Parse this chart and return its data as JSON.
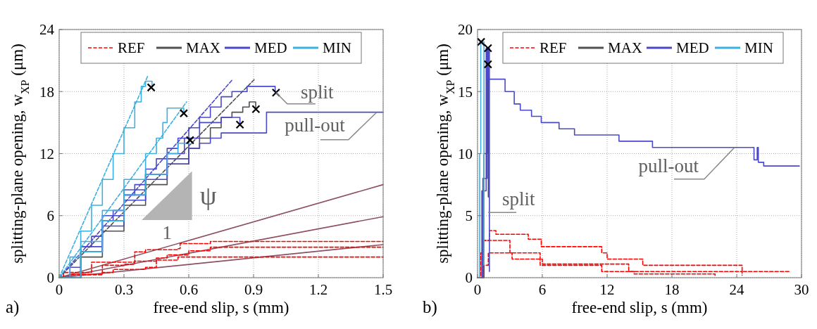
{
  "chart_data": [
    {
      "type": "step",
      "xlabel": "free-end slip, s (mm)",
      "ylabel": "splitting-plane opening, w$_{XP}$ (μm)",
      "xlim": [
        0,
        1.5
      ],
      "ylim": [
        0,
        24
      ],
      "xticks": [
        0,
        0.3,
        0.6,
        0.9,
        1.2,
        1.5
      ],
      "yticks": [
        0,
        6,
        12,
        18,
        24
      ],
      "grid": true,
      "legend": "top",
      "annotations": [
        "a)",
        {
          "text": "split",
          "x": 1.004,
          "y": 17.9
        },
        {
          "text": "pull-out",
          "x": 1.47,
          "y": 16
        },
        "ψ",
        "1"
      ],
      "series": [
        {
          "type": "line",
          "color": "#8c5060",
          "x": [
            0,
            1.5
          ],
          "values": [
            0,
            9
          ]
        },
        {
          "type": "line",
          "color": "#8c5060",
          "x": [
            0,
            1.5
          ],
          "values": [
            0,
            5.9
          ]
        },
        {
          "type": "line",
          "color": "#8c5060",
          "x": [
            0,
            1.5
          ],
          "values": [
            0,
            3.2
          ]
        },
        {
          "name": "REF",
          "color": "#ff0000",
          "line_style": "dashed",
          "x": [
            0,
            0.02,
            0.15,
            0.15,
            0.25,
            0.35,
            0.4,
            0.55,
            0.56,
            0.7,
            1.5
          ],
          "values": [
            0,
            0.5,
            0.7,
            1.5,
            1.5,
            2.5,
            2.7,
            2.8,
            3.3,
            3.5,
            3.5
          ]
        },
        {
          "color": "#ff0000",
          "line_style": "dashed",
          "x": [
            0,
            0.05,
            0.2,
            0.3,
            0.35,
            0.45,
            0.5,
            0.6,
            0.7,
            1.5
          ],
          "values": [
            0,
            0.3,
            1.2,
            1.3,
            1.6,
            1.9,
            2.2,
            2.6,
            2.95,
            2.95
          ]
        },
        {
          "color": "#ff0000",
          "line_style": "dashed",
          "x": [
            0,
            0.1,
            0.2,
            0.25,
            0.4,
            0.45,
            0.55,
            1.1,
            1.5
          ],
          "values": [
            0,
            0.3,
            0.5,
            0.8,
            1,
            1.7,
            2,
            2,
            2
          ]
        },
        {
          "name": "MAX",
          "color": "#505050",
          "x": [
            0,
            0.1,
            0.2,
            0.3,
            0.4,
            0.5,
            0.6,
            0.65,
            0.7,
            0.75,
            0.8,
            0.85,
            0.88,
            0.91,
            0.91
          ],
          "values": [
            0,
            2,
            4.5,
            7,
            9,
            11,
            12.5,
            13.5,
            14.5,
            15.5,
            16,
            16.5,
            17,
            17,
            16.3
          ]
        },
        {
          "type": "line",
          "color": "#505050",
          "line_style": "dashed",
          "x": [
            0,
            0.905
          ],
          "values": [
            0,
            19.2
          ]
        },
        {
          "name": "MED",
          "color": "#4a4ac8",
          "x": [
            0,
            0.05,
            0.1,
            0.15,
            0.2,
            0.25,
            0.3,
            0.35,
            0.4,
            0.45,
            0.5,
            0.55,
            0.6,
            0.65,
            0.7,
            0.75,
            0.8,
            0.87,
            1.0,
            1.0
          ],
          "values": [
            0,
            1,
            3,
            4,
            5.5,
            6.5,
            8,
            9,
            10.5,
            11.5,
            12.5,
            13.5,
            14.5,
            15.5,
            16.5,
            17.5,
            18,
            18.5,
            18.5,
            18
          ]
        },
        {
          "color": "#4a4ac8",
          "x": [
            0,
            0.1,
            0.2,
            0.3,
            0.4,
            0.5,
            0.6,
            0.65,
            0.7,
            0.75,
            0.94,
            0.96,
            1.5
          ],
          "values": [
            0,
            2.5,
            5,
            7.5,
            9.5,
            11,
            12.5,
            13,
            13.5,
            14,
            14,
            16,
            16
          ]
        },
        {
          "color": "#4a4ac8",
          "x": [
            0,
            0.1,
            0.2,
            0.3,
            0.4,
            0.5,
            0.6,
            0.65,
            0.75,
            0.8,
            0.837
          ],
          "values": [
            0,
            2.5,
            5.5,
            8,
            10,
            11.5,
            13.5,
            15,
            15.5,
            15.5,
            14.8
          ]
        },
        {
          "color": "#4a4ac8",
          "x": [
            0,
            0.1,
            0.2,
            0.3,
            0.4,
            0.5,
            0.58,
            0.606
          ],
          "values": [
            0,
            3,
            6,
            8.5,
            10,
            12,
            13.5,
            13.3
          ]
        },
        {
          "type": "line",
          "color": "#4a4ac8",
          "line_style": "dashed",
          "x": [
            0,
            0.8
          ],
          "values": [
            0,
            19.1
          ]
        },
        {
          "name": "MIN",
          "color": "#3cb0e0",
          "x": [
            0,
            0.05,
            0.1,
            0.15,
            0.2,
            0.25,
            0.3,
            0.35,
            0.38,
            0.4,
            0.43,
            0.43
          ],
          "values": [
            0,
            2,
            4.5,
            7,
            9.5,
            12,
            14.5,
            17,
            18.5,
            19,
            19,
            18.5
          ]
        },
        {
          "color": "#3cb0e0",
          "x": [
            0,
            0.1,
            0.2,
            0.3,
            0.4,
            0.45,
            0.48,
            0.5,
            0.56,
            0.577
          ],
          "values": [
            0,
            3.5,
            6.5,
            9.5,
            12,
            13.5,
            15,
            16.4,
            16.4,
            15.9
          ]
        },
        {
          "color": "#3cb0e0",
          "x": [
            0,
            0.1,
            0.2,
            0.3,
            0.4,
            0.5,
            0.55,
            0.6
          ],
          "values": [
            0,
            2.5,
            5.5,
            8,
            10,
            12,
            13,
            13.5
          ]
        },
        {
          "type": "line",
          "color": "#3cb0e0",
          "line_style": "dashed",
          "x": [
            0,
            0.41
          ],
          "values": [
            0,
            19.5
          ]
        },
        {
          "type": "line",
          "color": "#3cb0e0",
          "line_style": "dashed",
          "x": [
            0,
            0.59
          ],
          "values": [
            0,
            17
          ]
        },
        {
          "type": "scatter",
          "marker": "cross",
          "color": "#000000",
          "x": [
            0.426,
            0.577,
            0.606,
            0.837,
            0.911,
            1.004
          ],
          "values": [
            18.4,
            15.9,
            13.3,
            14.8,
            16.3,
            17.9
          ]
        }
      ]
    },
    {
      "type": "step",
      "xlabel": "free-end slip, s (mm)",
      "ylabel": "splitting-plane opening, w$_{XP}$ (μm)",
      "xlim": [
        0,
        30
      ],
      "ylim": [
        0,
        20
      ],
      "xticks": [
        0,
        6,
        12,
        18,
        24,
        30
      ],
      "yticks": [
        0,
        5,
        10,
        15,
        20
      ],
      "grid": true,
      "legend": "top right",
      "annotations": [
        "b)",
        {
          "text": "pull-out",
          "x": 23.8,
          "y": 10.5
        },
        {
          "text": "split",
          "x": 0.98,
          "y": 5.25
        }
      ],
      "series": [
        {
          "name": "REF",
          "color": "#ff0000",
          "line_style": "dashed",
          "x": [
            0,
            0.3,
            0.6,
            1.1,
            1.1,
            1.7,
            1.7,
            4.7,
            4.7,
            5.9,
            5.9,
            11,
            11.5,
            12,
            15.3,
            15.3,
            24.3,
            24.5,
            29
          ],
          "values": [
            0,
            2,
            3,
            3,
            3.8,
            3.8,
            3.5,
            3.5,
            3.1,
            3.1,
            2.5,
            2.5,
            2,
            1.5,
            1.5,
            1,
            1,
            0.5,
            0.5
          ]
        },
        {
          "color": "#ff0000",
          "line_style": "dashed",
          "x": [
            0,
            0.5,
            3,
            3,
            5.8,
            5.8,
            11,
            11.5,
            14,
            14.5,
            21,
            22
          ],
          "values": [
            0,
            3,
            3,
            2,
            2,
            1,
            1,
            0.5,
            0.5,
            0.3,
            0.3,
            0.1
          ]
        },
        {
          "color": "#ff0000",
          "line_style": "dashed",
          "x": [
            0,
            0.6,
            1,
            3.1,
            3.2,
            5.6,
            6,
            13.5,
            14,
            24,
            24.5
          ],
          "values": [
            0,
            1,
            2,
            2,
            1.5,
            1.5,
            1.1,
            1.1,
            0.5,
            0.5,
            0.2
          ]
        },
        {
          "name": "MAX",
          "color": "#505050",
          "x": [
            0,
            0.6,
            0.9,
            1,
            1
          ],
          "values": [
            0,
            10,
            17.2,
            17.2,
            6.5
          ]
        },
        {
          "name": "MED",
          "color": "#4a4ac8",
          "x": [
            0,
            0.5,
            0.9,
            1,
            1,
            2.55,
            2.55,
            3.4,
            3.4,
            3.96,
            3.96,
            5,
            5,
            5.9,
            5.9,
            7.55,
            7.55,
            8.98,
            8.98,
            13.1,
            13.1,
            16.2,
            16.2,
            25.5,
            25.6,
            25.9,
            26,
            26.5,
            29.8
          ],
          "values": [
            0,
            8,
            18.5,
            18.5,
            16,
            16,
            15,
            15,
            14,
            14,
            13.5,
            13.5,
            13,
            13,
            12.5,
            12.5,
            12,
            12,
            11.5,
            11.5,
            11,
            11,
            10.5,
            10.5,
            9.5,
            10.5,
            9.3,
            9,
            9
          ]
        },
        {
          "color": "#4a4ac8",
          "x": [
            0,
            0.4,
            0.8,
            0.95,
            1.1
          ],
          "values": [
            0,
            7,
            18.5,
            18.5,
            0.5
          ]
        },
        {
          "name": "MIN",
          "color": "#3cb0e0",
          "x": [
            0,
            0.2,
            0.3,
            0.45,
            0.6
          ],
          "values": [
            0,
            10,
            19,
            19,
            1
          ]
        },
        {
          "type": "scatter",
          "marker": "cross",
          "color": "#000000",
          "x": [
            0.33,
            0.97,
            0.97
          ],
          "values": [
            19,
            18.5,
            17.2
          ]
        }
      ]
    }
  ]
}
